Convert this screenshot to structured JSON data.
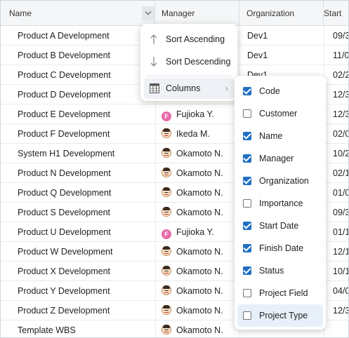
{
  "header": {
    "name": "Name",
    "manager": "Manager",
    "organization": "Organization",
    "start": "Start"
  },
  "rows": [
    {
      "name": "Product A Development",
      "manager": "",
      "org": "Dev1",
      "start": "09/3",
      "avatar": ""
    },
    {
      "name": "Product B Development",
      "manager": "",
      "org": "Dev1",
      "start": "11/0",
      "avatar": ""
    },
    {
      "name": "Product C Development",
      "manager": "",
      "org": "Dev1",
      "start": "02/2",
      "avatar": ""
    },
    {
      "name": "Product D Development",
      "manager": "",
      "org": "",
      "start": "12/3",
      "avatar": ""
    },
    {
      "name": "Product E Development",
      "manager": "Fujioka Y.",
      "org": "",
      "start": "12/3",
      "avatar": "F"
    },
    {
      "name": "Product F Development",
      "manager": "Ikeda M.",
      "org": "",
      "start": "02/0",
      "avatar": "M"
    },
    {
      "name": "System H1 Development",
      "manager": "Okamoto N.",
      "org": "",
      "start": "10/2",
      "avatar": "M"
    },
    {
      "name": "Product N Development",
      "manager": "Okamoto N.",
      "org": "",
      "start": "02/1",
      "avatar": "M"
    },
    {
      "name": "Product Q Development",
      "manager": "Okamoto N.",
      "org": "",
      "start": "01/0",
      "avatar": "M"
    },
    {
      "name": "Product S Development",
      "manager": "Okamoto N.",
      "org": "",
      "start": "09/3",
      "avatar": "M"
    },
    {
      "name": "Product U Development",
      "manager": "Fujioka Y.",
      "org": "",
      "start": "01/1",
      "avatar": "F"
    },
    {
      "name": "Product W Development",
      "manager": "Okamoto N.",
      "org": "",
      "start": "12/1",
      "avatar": "M"
    },
    {
      "name": "Product X Development",
      "manager": "Okamoto N.",
      "org": "",
      "start": "10/1",
      "avatar": "M"
    },
    {
      "name": "Product Y Development",
      "manager": "Okamoto N.",
      "org": "",
      "start": "04/0",
      "avatar": "M"
    },
    {
      "name": "Product Z Development",
      "manager": "Okamoto N.",
      "org": "",
      "start": "12/3",
      "avatar": "M"
    },
    {
      "name": "Template WBS",
      "manager": "Okamoto N.",
      "org": "",
      "start": "",
      "avatar": "M"
    }
  ],
  "menu": {
    "sort_asc": "Sort Ascending",
    "sort_desc": "Sort Descending",
    "columns": "Columns"
  },
  "columns_menu": [
    {
      "label": "Code",
      "checked": true
    },
    {
      "label": "Customer",
      "checked": false
    },
    {
      "label": "Name",
      "checked": true
    },
    {
      "label": "Manager",
      "checked": true
    },
    {
      "label": "Organization",
      "checked": true
    },
    {
      "label": "Importance",
      "checked": false
    },
    {
      "label": "Start Date",
      "checked": true
    },
    {
      "label": "Finish Date",
      "checked": true
    },
    {
      "label": "Status",
      "checked": true
    },
    {
      "label": "Project Field",
      "checked": false
    },
    {
      "label": "Project Type",
      "checked": false
    }
  ],
  "icons": {
    "header_menu": "chevron-down-icon",
    "sort_asc": "arrow-up-icon",
    "sort_desc": "arrow-down-icon",
    "columns": "columns-table-icon",
    "submenu": "chevron-right-icon"
  },
  "colors": {
    "checkbox_on": "#1f6fc4",
    "avatar_f": "#e86aa9",
    "hover": "#e7f0f9"
  }
}
